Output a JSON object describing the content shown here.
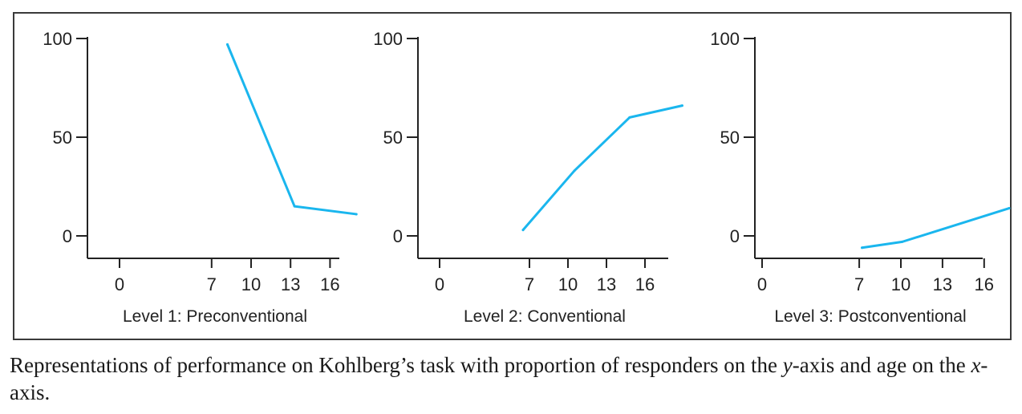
{
  "chart_data": [
    {
      "type": "line",
      "title": "",
      "xlabel": "Level 1: Preconventional",
      "ylabel": "",
      "x_ticks": [
        0,
        7,
        10,
        13,
        16
      ],
      "y_ticks": [
        0,
        50,
        100
      ],
      "series": [
        {
          "x": [
            8.2,
            13.3,
            18.0
          ],
          "y": [
            97,
            15,
            11
          ]
        }
      ]
    },
    {
      "type": "line",
      "title": "",
      "xlabel": "Level 2: Conventional",
      "ylabel": "",
      "x_ticks": [
        0,
        7,
        10,
        13,
        16
      ],
      "y_ticks": [
        0,
        50,
        100
      ],
      "series": [
        {
          "x": [
            6.5,
            10.5,
            14.8,
            18.9
          ],
          "y": [
            3,
            33,
            60,
            66
          ]
        }
      ]
    },
    {
      "type": "line",
      "title": "",
      "xlabel": "Level 3: Postconventional",
      "ylabel": "",
      "x_ticks": [
        0,
        7,
        10,
        13,
        16
      ],
      "y_ticks": [
        0,
        50,
        100
      ],
      "series": [
        {
          "x": [
            7.2,
            10.1,
            17.8
          ],
          "y": [
            -6,
            -3,
            14
          ]
        }
      ]
    }
  ],
  "style": {
    "line_color": "#1ab6ee",
    "axis_color": "#222222"
  },
  "caption": {
    "part1": "Representations of performance on Kohlberg’s task with proportion of responders on the ",
    "y_var": "y",
    "part2": "-axis and age on the ",
    "x_var": "x",
    "part3": "-axis."
  }
}
